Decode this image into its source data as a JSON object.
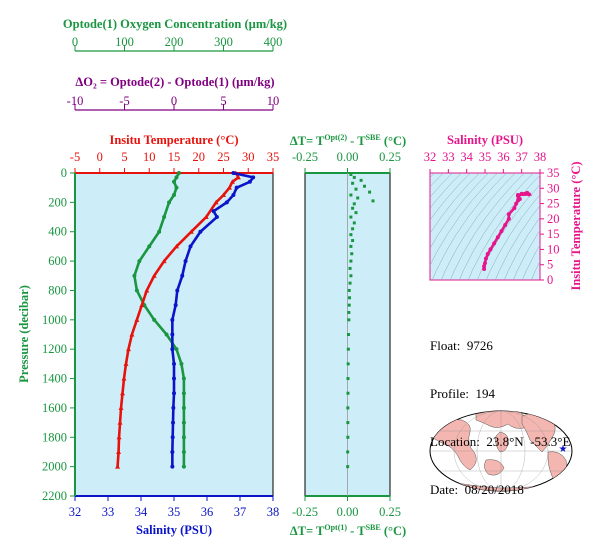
{
  "colors": {
    "oxygen": "#1a9641",
    "delta_o2": "#800080",
    "temperature": "#e8120c",
    "salinity": "#0a14c8",
    "delta_t": "#1a9641",
    "inset": "#e6158c",
    "panel_bg": "#cdeef8",
    "land": "#f4b6b0",
    "ocean": "#ffffff"
  },
  "info": {
    "float_label": "Float:",
    "float_value": "9726",
    "profile_label": "Profile:",
    "profile_value": "194",
    "location_label": "Location:",
    "location_value": "23.8°N  -53.3°E",
    "date_label": "Date:",
    "date_value": "08/20/2018"
  },
  "map": {
    "marker": "star-icon",
    "marker_lon": -53.3,
    "marker_lat": 23.8
  },
  "chart_data": [
    {
      "id": "main-profile",
      "type": "line",
      "ylabel": "Pressure (decibar)",
      "ylim": [
        2200,
        0
      ],
      "yticks": [
        "0",
        "200",
        "400",
        "600",
        "800",
        "1000",
        "1200",
        "1400",
        "1600",
        "1800",
        "2000",
        "2200"
      ],
      "axes": {
        "oxygen": {
          "label": "Optode(1) Oxygen Concentration (µm/kg)",
          "range": [
            0,
            400
          ],
          "ticks": [
            "0",
            "100",
            "200",
            "300",
            "400"
          ]
        },
        "delta_o2": {
          "label": "ΔO₂ = Optode(2) - Optode(1)   (µm/kg)",
          "range": [
            -10,
            10
          ],
          "ticks": [
            "-10",
            "-5",
            "0",
            "5",
            "10"
          ]
        },
        "temperature": {
          "label": "Insitu Temperature (°C)",
          "range": [
            -5,
            35
          ],
          "ticks": [
            "-5",
            "0",
            "5",
            "10",
            "15",
            "20",
            "25",
            "30",
            "35"
          ]
        },
        "salinity": {
          "label": "Salinity (PSU)",
          "range": [
            32,
            38
          ],
          "ticks": [
            "32",
            "33",
            "34",
            "35",
            "36",
            "37",
            "38"
          ]
        }
      },
      "series": [
        {
          "name": "oxygen",
          "axis": "oxygen",
          "points": [
            [
              210,
              0
            ],
            [
              205,
              30
            ],
            [
              200,
              60
            ],
            [
              205,
              100
            ],
            [
              200,
              150
            ],
            [
              190,
              200
            ],
            [
              180,
              300
            ],
            [
              170,
              400
            ],
            [
              150,
              500
            ],
            [
              130,
              600
            ],
            [
              120,
              700
            ],
            [
              125,
              800
            ],
            [
              140,
              900
            ],
            [
              160,
              1000
            ],
            [
              185,
              1100
            ],
            [
              205,
              1200
            ],
            [
              215,
              1300
            ],
            [
              220,
              1400
            ],
            [
              220,
              1500
            ],
            [
              220,
              1600
            ],
            [
              220,
              1700
            ],
            [
              220,
              1800
            ],
            [
              220,
              1900
            ],
            [
              220,
              2000
            ]
          ]
        },
        {
          "name": "temperature",
          "axis": "temperature",
          "points": [
            [
              27.5,
              0
            ],
            [
              28,
              30
            ],
            [
              26.8,
              60
            ],
            [
              26.2,
              100
            ],
            [
              25,
              150
            ],
            [
              23.5,
              200
            ],
            [
              21.5,
              300
            ],
            [
              18.5,
              400
            ],
            [
              15.5,
              500
            ],
            [
              13,
              600
            ],
            [
              11,
              700
            ],
            [
              9.5,
              800
            ],
            [
              8.5,
              900
            ],
            [
              7.5,
              1000
            ],
            [
              6.5,
              1100
            ],
            [
              5.8,
              1200
            ],
            [
              5.3,
              1300
            ],
            [
              4.9,
              1400
            ],
            [
              4.6,
              1500
            ],
            [
              4.3,
              1600
            ],
            [
              4.1,
              1700
            ],
            [
              3.9,
              1800
            ],
            [
              3.8,
              1900
            ],
            [
              3.6,
              2000
            ]
          ]
        },
        {
          "name": "salinity",
          "axis": "salinity",
          "points": [
            [
              36.8,
              0
            ],
            [
              37.4,
              30
            ],
            [
              37.3,
              60
            ],
            [
              36.9,
              100
            ],
            [
              36.8,
              150
            ],
            [
              36.6,
              200
            ],
            [
              36.2,
              260
            ],
            [
              36.3,
              300
            ],
            [
              35.8,
              400
            ],
            [
              35.5,
              500
            ],
            [
              35.35,
              600
            ],
            [
              35.25,
              700
            ],
            [
              35.1,
              800
            ],
            [
              35.05,
              900
            ],
            [
              34.95,
              1000
            ],
            [
              34.95,
              1100
            ],
            [
              34.95,
              1200
            ],
            [
              35.0,
              1300
            ],
            [
              35.0,
              1400
            ],
            [
              35.0,
              1500
            ],
            [
              34.98,
              1600
            ],
            [
              34.97,
              1700
            ],
            [
              34.96,
              1800
            ],
            [
              34.95,
              1900
            ],
            [
              34.95,
              2000
            ]
          ]
        }
      ]
    },
    {
      "id": "delta-t-profile",
      "type": "scatter",
      "ylim": [
        2200,
        0
      ],
      "axes": {
        "top": {
          "label_prefix": "ΔT= T",
          "label_sup1": "Opt(2)",
          "label_mid": " - T",
          "label_sup2": "SBE",
          "label_suffix": " (°C)",
          "range": [
            -0.25,
            0.25
          ],
          "ticks": [
            "-0.25",
            "0.00",
            "0.25"
          ]
        },
        "bottom": {
          "label_prefix": "ΔT= T",
          "label_sup1": "Opt(1)",
          "label_mid": " - T",
          "label_sup2": "SBE",
          "label_suffix": " (°C)",
          "range": [
            -0.25,
            0.25
          ],
          "ticks": [
            "-0.25",
            "0.00",
            "0.25"
          ]
        }
      },
      "series": [
        {
          "name": "delta-t",
          "points": [
            [
              0.02,
              10
            ],
            [
              0.04,
              30
            ],
            [
              0.08,
              50
            ],
            [
              0.03,
              70
            ],
            [
              0.1,
              90
            ],
            [
              0.05,
              110
            ],
            [
              0.13,
              130
            ],
            [
              0.02,
              150
            ],
            [
              0.06,
              170
            ],
            [
              0.15,
              190
            ],
            [
              0.04,
              210
            ],
            [
              0.03,
              240
            ],
            [
              0.05,
              270
            ],
            [
              0.02,
              300
            ],
            [
              0.04,
              340
            ],
            [
              0.03,
              380
            ],
            [
              0.02,
              420
            ],
            [
              0.03,
              460
            ],
            [
              0.02,
              500
            ],
            [
              0.025,
              550
            ],
            [
              0.02,
              600
            ],
            [
              0.015,
              650
            ],
            [
              0.02,
              700
            ],
            [
              0.015,
              750
            ],
            [
              0.01,
              800
            ],
            [
              0.012,
              850
            ],
            [
              0.01,
              900
            ],
            [
              0.008,
              950
            ],
            [
              0.008,
              1000
            ],
            [
              0.006,
              1100
            ],
            [
              0.005,
              1200
            ],
            [
              0.004,
              1300
            ],
            [
              0.003,
              1400
            ],
            [
              0.003,
              1500
            ],
            [
              0.002,
              1600
            ],
            [
              0.002,
              1700
            ],
            [
              0.002,
              1800
            ],
            [
              0.001,
              1900
            ],
            [
              0.001,
              2000
            ]
          ]
        }
      ]
    },
    {
      "id": "ts-diagram",
      "type": "scatter",
      "xlabel": "Salinity (PSU)",
      "ylabel": "Insitu Temperature (°C)",
      "xlim": [
        32,
        38
      ],
      "ylim": [
        0,
        35
      ],
      "xticks": [
        "32",
        "33",
        "34",
        "35",
        "36",
        "37",
        "38"
      ],
      "yticks": [
        "0",
        "5",
        "10",
        "15",
        "20",
        "25",
        "30",
        "35"
      ],
      "series": [
        {
          "name": "ts",
          "points": [
            [
              34.95,
              3.6
            ],
            [
              34.95,
              4.5
            ],
            [
              35.0,
              5.5
            ],
            [
              35.05,
              7
            ],
            [
              35.15,
              8.5
            ],
            [
              35.3,
              10
            ],
            [
              35.5,
              12
            ],
            [
              35.7,
              14
            ],
            [
              35.9,
              16
            ],
            [
              36.1,
              18
            ],
            [
              36.3,
              20
            ],
            [
              36.3,
              21.5
            ],
            [
              36.6,
              23.5
            ],
            [
              36.7,
              25
            ],
            [
              36.8,
              26
            ],
            [
              36.8,
              27.5
            ],
            [
              37.0,
              28.2
            ],
            [
              37.3,
              28.5
            ],
            [
              37.4,
              28
            ],
            [
              36.8,
              27.8
            ],
            [
              36.9,
              26.5
            ]
          ]
        }
      ]
    }
  ]
}
